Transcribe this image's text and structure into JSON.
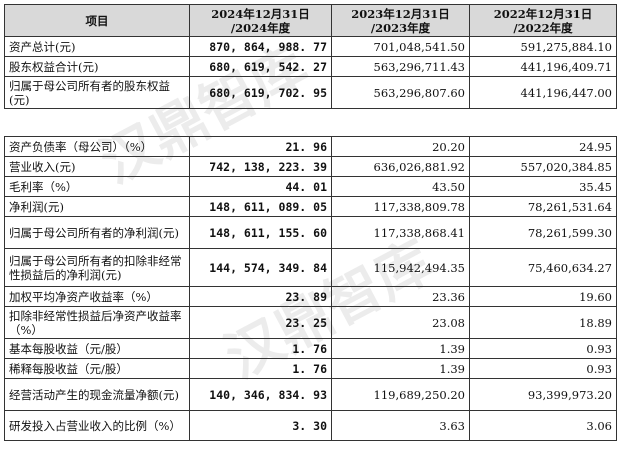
{
  "header": {
    "item": "项目",
    "col2024": [
      "2024年12月31日",
      "/2024年度"
    ],
    "col2023": [
      "2023年12月31日",
      "/2023年度"
    ],
    "col2022": [
      "2022年12月31日",
      "/2022年度"
    ]
  },
  "table1": [
    {
      "label": "资产总计(元)",
      "v2024": "870, 864, 988. 77",
      "v2023": "701,048,541.50",
      "v2022": "591,275,884.10"
    },
    {
      "label": "股东权益合计(元)",
      "v2024": "680, 619, 542. 27",
      "v2023": "563,296,711.43",
      "v2022": "441,196,409.71"
    },
    {
      "label": "归属于母公司所有者的股东权益(元)",
      "v2024": "680, 619, 702. 95",
      "v2023": "563,296,807.60",
      "v2022": "441,196,447.00"
    }
  ],
  "table2": [
    {
      "label": "资产负债率（母公司）（%）",
      "v2024": "21. 96",
      "v2023": "20.20",
      "v2022": "24.95"
    },
    {
      "label": "营业收入(元)",
      "v2024": "742, 138, 223. 39",
      "v2023": "636,026,881.92",
      "v2022": "557,020,384.85"
    },
    {
      "label": "毛利率（%）",
      "v2024": "44. 01",
      "v2023": "43.50",
      "v2022": "35.45"
    },
    {
      "label": "净利润(元)",
      "v2024": "148, 611, 089. 05",
      "v2023": "117,338,809.78",
      "v2022": "78,261,531.64"
    },
    {
      "label": "归属于母公司所有者的净利润(元)",
      "v2024": "148, 611, 155. 60",
      "v2023": "117,338,868.41",
      "v2022": "78,261,599.30"
    },
    {
      "label": "归属于母公司所有者的扣除非经常性损益后的净利润(元)",
      "v2024": "144, 574, 349. 84",
      "v2023": "115,942,494.35",
      "v2022": "75,460,634.27"
    },
    {
      "label": "加权平均净资产收益率（%）",
      "v2024": "23. 89",
      "v2023": "23.36",
      "v2022": "19.60"
    },
    {
      "label": "扣除非经常性损益后净资产收益率（%）",
      "v2024": "23. 25",
      "v2023": "23.08",
      "v2022": "18.89"
    },
    {
      "label": "基本每股收益（元/股）",
      "v2024": "1. 76",
      "v2023": "1.39",
      "v2022": "0.93"
    },
    {
      "label": "稀释每股收益（元/股）",
      "v2024": "1. 76",
      "v2023": "1.39",
      "v2022": "0.93"
    },
    {
      "label": "经营活动产生的现金流量净额(元)",
      "v2024": "140, 346, 834. 93",
      "v2023": "119,689,250.20",
      "v2022": "93,399,973.20"
    },
    {
      "label": "研发投入占营业收入的比例（%）",
      "v2024": "3. 30",
      "v2023": "3.63",
      "v2022": "3.06"
    }
  ],
  "watermark": "汉鼎智库"
}
